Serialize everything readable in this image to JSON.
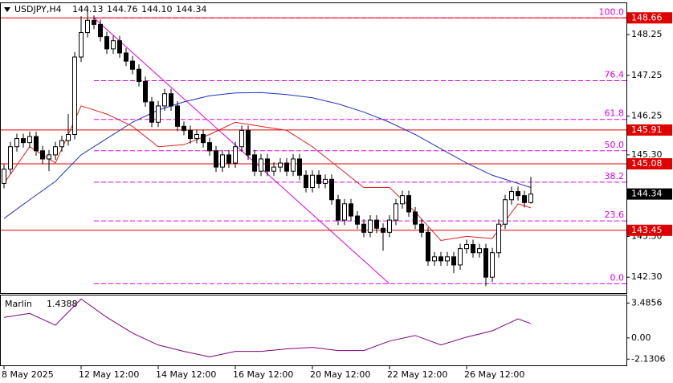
{
  "chart_data": {
    "type": "candlestick",
    "symbol": "USDJPY,H4",
    "header_ohlc": [
      "144.13",
      "144.76",
      "144.10",
      "144.34"
    ],
    "categories": [
      "8 May 2025",
      null,
      null,
      null,
      null,
      null,
      null,
      null,
      null,
      null,
      null,
      null,
      "12 May 12:00",
      null,
      null,
      null,
      null,
      null,
      null,
      null,
      null,
      null,
      null,
      null,
      "14 May 12:00",
      null,
      null,
      null,
      null,
      null,
      null,
      null,
      null,
      null,
      null,
      null,
      "16 May 12:00",
      null,
      null,
      null,
      null,
      null,
      null,
      null,
      null,
      null,
      null,
      null,
      "20 May 12:00",
      null,
      null,
      null,
      null,
      null,
      null,
      null,
      null,
      null,
      null,
      null,
      "22 May 12:00",
      null,
      null,
      null,
      null,
      null,
      null,
      null,
      null,
      null,
      null,
      null,
      "26 May 12:00",
      null,
      null,
      null,
      null,
      null,
      null,
      null,
      null,
      null,
      null
    ],
    "open": [
      144.6,
      144.95,
      145.5,
      145.7,
      145.6,
      145.75,
      145.4,
      145.2,
      145.3,
      145.5,
      145.65,
      145.8,
      147.7,
      148.3,
      148.6,
      148.5,
      148.2,
      147.9,
      148.1,
      147.8,
      147.6,
      147.4,
      147.1,
      146.6,
      146.1,
      146.5,
      146.8,
      146.5,
      146.0,
      145.9,
      145.7,
      145.8,
      145.6,
      145.4,
      145.0,
      145.3,
      145.1,
      145.5,
      145.9,
      145.3,
      144.9,
      145.2,
      144.9,
      145.0,
      145.1,
      144.9,
      145.2,
      144.8,
      144.5,
      144.8,
      144.6,
      144.7,
      144.2,
      143.7,
      144.1,
      143.8,
      143.6,
      143.4,
      143.7,
      143.5,
      143.4,
      143.7,
      144.1,
      144.3,
      143.9,
      143.6,
      143.4,
      142.7,
      142.8,
      142.7,
      142.8,
      142.6,
      143.0,
      143.1,
      142.9,
      143.0,
      142.3,
      142.9,
      143.6,
      144.2,
      144.4,
      144.3,
      144.13
    ],
    "high": [
      145.07,
      145.62,
      145.82,
      145.82,
      145.87,
      145.87,
      145.52,
      145.42,
      145.62,
      145.77,
      146.3,
      147.82,
      148.7,
      148.92,
      148.72,
      148.62,
      148.32,
      148.22,
      148.22,
      147.92,
      147.72,
      147.52,
      147.22,
      146.72,
      146.62,
      146.92,
      146.92,
      146.62,
      146.12,
      146.02,
      145.92,
      145.92,
      145.72,
      145.52,
      145.42,
      145.42,
      145.62,
      146.02,
      146.02,
      145.42,
      145.32,
      145.32,
      145.12,
      145.22,
      145.22,
      145.32,
      145.32,
      144.92,
      144.92,
      144.92,
      144.82,
      144.82,
      144.32,
      144.22,
      144.22,
      143.92,
      143.72,
      143.82,
      143.82,
      143.62,
      143.82,
      144.22,
      144.42,
      144.42,
      144.02,
      143.72,
      143.52,
      142.92,
      142.92,
      142.92,
      142.92,
      143.12,
      143.22,
      143.22,
      143.12,
      143.12,
      143.02,
      143.72,
      144.32,
      144.52,
      144.52,
      144.42,
      144.76
    ],
    "low": [
      144.48,
      144.83,
      145.38,
      145.48,
      145.48,
      145.28,
      145.08,
      144.9,
      145.18,
      145.38,
      145.53,
      145.68,
      147.58,
      148.18,
      148.38,
      148.08,
      147.78,
      147.78,
      147.68,
      147.48,
      147.28,
      146.98,
      146.48,
      145.98,
      145.98,
      146.38,
      146.38,
      145.88,
      145.78,
      145.58,
      145.58,
      145.48,
      145.28,
      144.88,
      144.88,
      144.98,
      144.98,
      145.38,
      145.18,
      144.78,
      144.78,
      144.78,
      144.78,
      144.88,
      144.78,
      144.78,
      144.68,
      144.38,
      144.38,
      144.48,
      144.48,
      144.08,
      143.58,
      143.58,
      143.68,
      143.48,
      143.28,
      143.28,
      143.38,
      142.95,
      143.28,
      143.58,
      143.98,
      143.78,
      143.48,
      143.28,
      142.58,
      142.58,
      142.58,
      142.58,
      142.4,
      142.48,
      142.88,
      142.78,
      142.78,
      142.08,
      142.18,
      142.78,
      143.48,
      144.08,
      144.18,
      144.01,
      144.1
    ],
    "close": [
      144.95,
      145.5,
      145.7,
      145.6,
      145.75,
      145.4,
      145.2,
      145.3,
      145.5,
      145.65,
      145.8,
      147.7,
      148.3,
      148.6,
      148.5,
      148.2,
      147.9,
      148.1,
      147.8,
      147.6,
      147.4,
      147.1,
      146.6,
      146.1,
      146.5,
      146.8,
      146.5,
      146.0,
      145.9,
      145.7,
      145.8,
      145.6,
      145.4,
      145.0,
      145.3,
      145.1,
      145.5,
      145.9,
      145.3,
      144.9,
      145.2,
      144.9,
      145.0,
      145.1,
      144.9,
      145.2,
      144.8,
      144.5,
      144.8,
      144.6,
      144.7,
      144.2,
      143.7,
      144.1,
      143.8,
      143.6,
      143.4,
      143.7,
      143.5,
      143.4,
      143.7,
      144.1,
      144.3,
      143.9,
      143.6,
      143.4,
      142.7,
      142.8,
      142.7,
      142.8,
      142.6,
      143.0,
      143.1,
      142.9,
      143.0,
      142.3,
      142.9,
      143.6,
      144.2,
      144.4,
      144.3,
      144.13,
      144.34
    ],
    "ylim": [
      141.91,
      149.02
    ],
    "yticks": [
      148.25,
      147.25,
      146.25,
      {
        "value": 145.3,
        "label": "145.30"
      },
      {
        "value": 143.3,
        "label": "143.30"
      },
      {
        "value": 142.3,
        "label": "142.30"
      }
    ],
    "current_price": 144.34,
    "price_levels": [
      148.66,
      145.91,
      145.08,
      143.45
    ],
    "level_color": "#e00000",
    "fibo": {
      "color": "#e000e0",
      "from": 14,
      "to": 60,
      "labels": [
        "100.0",
        "76.4",
        "61.8",
        "50.0",
        "38.2",
        "23.6",
        "0.0"
      ],
      "prices": [
        148.66,
        147.12,
        146.17,
        145.4,
        144.63,
        143.68,
        142.14
      ]
    },
    "lines": [
      {
        "color": "#2030c0",
        "x": [
          0,
          4,
          8,
          12,
          16,
          20,
          24,
          28,
          32,
          36,
          40,
          44,
          48,
          52,
          56,
          60,
          64,
          68,
          72,
          76,
          80,
          82
        ],
        "values": [
          143.74,
          144.2,
          144.65,
          145.3,
          145.7,
          146.1,
          146.4,
          146.6,
          146.75,
          146.82,
          146.83,
          146.78,
          146.7,
          146.55,
          146.35,
          146.1,
          145.8,
          145.45,
          145.1,
          144.8,
          144.6,
          144.5
        ]
      },
      {
        "color": "#e02020",
        "x": [
          0,
          4,
          8,
          12,
          16,
          20,
          24,
          28,
          32,
          36,
          40,
          44,
          48,
          52,
          56,
          60,
          64,
          68,
          72,
          76,
          80,
          82
        ],
        "values": [
          144.6,
          145.5,
          145.1,
          146.5,
          146.3,
          146.0,
          145.5,
          145.55,
          145.8,
          146.1,
          146.0,
          145.9,
          145.5,
          145.0,
          144.5,
          144.5,
          143.9,
          143.2,
          143.3,
          143.25,
          144.1,
          144.0
        ]
      }
    ],
    "indicator": {
      "name": "Marlin",
      "value": 1.4388,
      "color": "#800080",
      "ylim": [
        -2.75,
        4.25
      ],
      "yticks": [
        3.4856,
        {
          "value": 0,
          "label": "0.00"
        },
        -2.1306
      ],
      "x": [
        0,
        4,
        8,
        12,
        16,
        20,
        24,
        28,
        32,
        36,
        40,
        44,
        48,
        52,
        56,
        60,
        64,
        68,
        72,
        76,
        80,
        82
      ],
      "values": [
        2.06,
        2.46,
        1.27,
        3.9,
        2.06,
        0.48,
        -0.71,
        -1.35,
        -1.9,
        -1.35,
        -1.35,
        -1.1,
        -0.95,
        -1.27,
        -1.27,
        -0.32,
        0.24,
        -0.71,
        0.08,
        0.71,
        1.9,
        1.4388
      ]
    }
  }
}
